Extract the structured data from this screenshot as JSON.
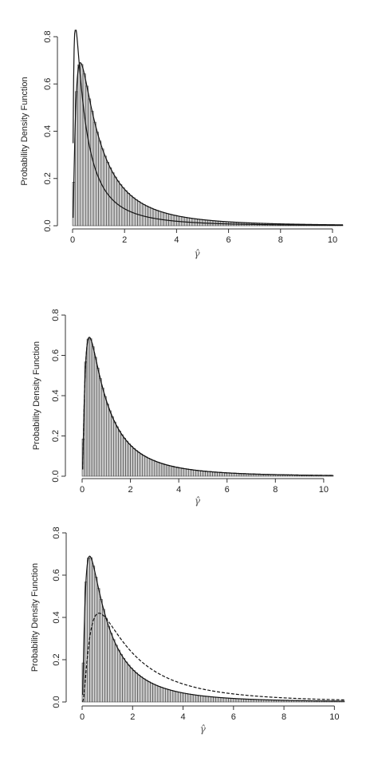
{
  "chart_data": [
    {
      "type": "bar",
      "panel": "top",
      "ylabel": "Probability Density Function",
      "xlabel_symbol": "γ̂",
      "xlim": [
        0,
        10.4
      ],
      "ylim": [
        0,
        0.8
      ],
      "xticks": [
        "0",
        "2",
        "4",
        "6",
        "8",
        "10"
      ],
      "yticks": [
        "0.0",
        "0.2",
        "0.4",
        "0.6",
        "0.8"
      ],
      "bin_width": 0.1,
      "histogram_peak": 0.69,
      "curves": [
        {
          "style": "solid",
          "description": "fitted density, higher peak",
          "peak": 0.84
        },
        {
          "style": "solid",
          "description": "fitted density matching histogram",
          "peak": 0.69
        }
      ]
    },
    {
      "type": "bar",
      "panel": "middle",
      "ylabel": "Probability Density Function",
      "xlabel_symbol": "γ̂",
      "xlim": [
        0,
        10.4
      ],
      "ylim": [
        0,
        0.8
      ],
      "xticks": [
        "0",
        "2",
        "4",
        "6",
        "8",
        "10"
      ],
      "yticks": [
        "0.0",
        "0.2",
        "0.4",
        "0.6",
        "0.8"
      ],
      "bin_width": 0.1,
      "histogram_peak": 0.69,
      "curves": [
        {
          "style": "solid",
          "description": "fitted density",
          "peak": 0.69
        },
        {
          "style": "dashed",
          "description": "fitted density",
          "peak": 0.69
        }
      ]
    },
    {
      "type": "bar",
      "panel": "bottom",
      "ylabel": "Probability Density Function",
      "xlabel_symbol": "γ̂",
      "xlim": [
        0,
        10.4
      ],
      "ylim": [
        0,
        0.8
      ],
      "xticks": [
        "0",
        "2",
        "4",
        "6",
        "8",
        "10"
      ],
      "yticks": [
        "0.0",
        "0.2",
        "0.4",
        "0.6",
        "0.8"
      ],
      "bin_width": 0.1,
      "histogram_peak": 0.69,
      "curves": [
        {
          "style": "solid",
          "description": "fitted density",
          "peak": 0.69
        },
        {
          "style": "dashed",
          "description": "fitted density, lower peak",
          "peak": 0.42
        }
      ]
    }
  ]
}
